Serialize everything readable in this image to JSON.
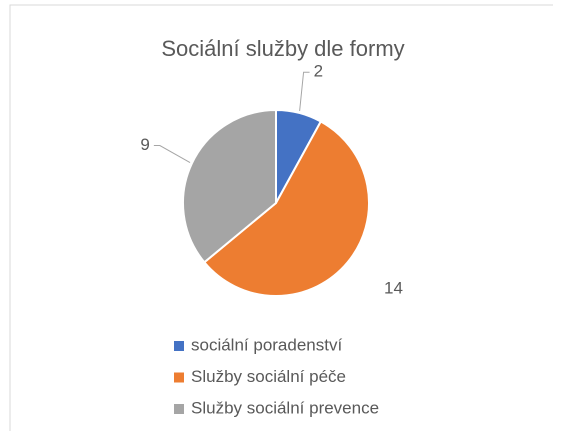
{
  "chart_data": {
    "type": "pie",
    "title": "Sociální služby dle formy",
    "categories": [
      "sociální poradenství",
      "Služby sociální péče",
      "Služby sociální prevence"
    ],
    "values": [
      2,
      14,
      9
    ],
    "colors": [
      "#4472c4",
      "#ed7d31",
      "#a5a5a5"
    ],
    "legend": "bottom"
  }
}
